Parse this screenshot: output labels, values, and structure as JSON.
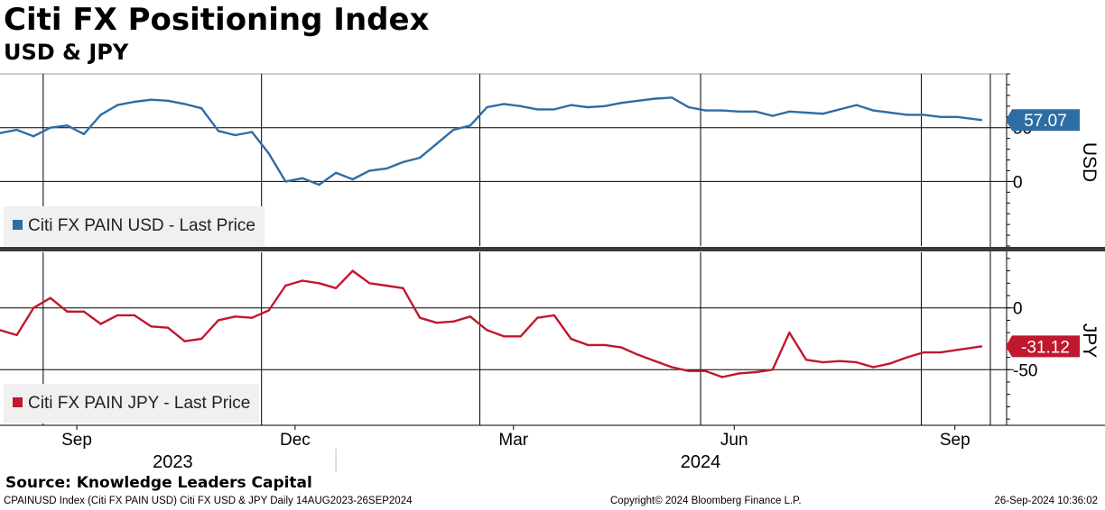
{
  "title": "Citi FX Positioning Index",
  "subtitle": "USD & JPY",
  "source": "Source: Knowledge Leaders Capital",
  "footer": {
    "left": "CPAINUSD Index (Citi FX PAIN USD) Citi FX USD & JPY  Daily 14AUG2023-26SEP2024",
    "center": "Copyright© 2024 Bloomberg Finance L.P.",
    "right": "26-Sep-2024 10:36:02"
  },
  "colors": {
    "usd": "#2e6da4",
    "jpy": "#c0182e",
    "grid": "#000000"
  },
  "chart_data": [
    {
      "type": "line",
      "panel": "USD",
      "axis_title": "USD",
      "legend": "Citi FX PAIN USD - Last Price",
      "last_value_label": "57.07",
      "ylim": [
        -60,
        100
      ],
      "yticks": [
        {
          "value": 50,
          "label": "50"
        },
        {
          "value": 0,
          "label": "0"
        }
      ],
      "grid": true,
      "series": [
        {
          "name": "Citi FX PAIN USD - Last Price",
          "x": [
            "2023-08-14",
            "2023-08-21",
            "2023-08-28",
            "2023-09-04",
            "2023-09-11",
            "2023-09-18",
            "2023-09-25",
            "2023-10-02",
            "2023-10-09",
            "2023-10-16",
            "2023-10-23",
            "2023-10-30",
            "2023-11-06",
            "2023-11-13",
            "2023-11-20",
            "2023-11-27",
            "2023-12-04",
            "2023-12-11",
            "2023-12-18",
            "2023-12-25",
            "2024-01-01",
            "2024-01-08",
            "2024-01-15",
            "2024-01-22",
            "2024-01-29",
            "2024-02-05",
            "2024-02-12",
            "2024-02-19",
            "2024-02-26",
            "2024-03-04",
            "2024-03-11",
            "2024-03-18",
            "2024-03-25",
            "2024-04-01",
            "2024-04-08",
            "2024-04-15",
            "2024-04-22",
            "2024-04-29",
            "2024-05-06",
            "2024-05-13",
            "2024-05-20",
            "2024-05-27",
            "2024-06-03",
            "2024-06-10",
            "2024-06-17",
            "2024-06-24",
            "2024-07-01",
            "2024-07-08",
            "2024-07-15",
            "2024-07-22",
            "2024-07-29",
            "2024-08-05",
            "2024-08-12",
            "2024-08-19",
            "2024-08-26",
            "2024-09-02",
            "2024-09-09",
            "2024-09-16",
            "2024-09-26"
          ],
          "values": [
            45,
            48,
            42,
            50,
            52,
            44,
            62,
            71,
            74,
            76,
            75,
            72,
            68,
            47,
            43,
            46,
            26,
            0,
            3,
            -3,
            8,
            2,
            10,
            12,
            18,
            22,
            35,
            48,
            52,
            69,
            72,
            70,
            67,
            67,
            71,
            69,
            70,
            73,
            75,
            77,
            78,
            69,
            66,
            66,
            65,
            65,
            61,
            65,
            64,
            63,
            67,
            71,
            66,
            64,
            62,
            62,
            60,
            60,
            57.07
          ]
        }
      ]
    },
    {
      "type": "line",
      "panel": "JPY",
      "axis_title": "JPY",
      "legend": "Citi FX PAIN JPY - Last Price",
      "last_value_label": "-31.12",
      "ylim": [
        -95,
        45
      ],
      "yticks": [
        {
          "value": 0,
          "label": "0"
        },
        {
          "value": -50,
          "label": "-50"
        }
      ],
      "grid": true,
      "series": [
        {
          "name": "Citi FX PAIN JPY - Last Price",
          "x": [
            "2023-08-14",
            "2023-08-21",
            "2023-08-28",
            "2023-09-04",
            "2023-09-11",
            "2023-09-18",
            "2023-09-25",
            "2023-10-02",
            "2023-10-09",
            "2023-10-16",
            "2023-10-23",
            "2023-10-30",
            "2023-11-06",
            "2023-11-13",
            "2023-11-20",
            "2023-11-27",
            "2023-12-04",
            "2023-12-11",
            "2023-12-18",
            "2023-12-25",
            "2024-01-01",
            "2024-01-08",
            "2024-01-15",
            "2024-01-22",
            "2024-01-29",
            "2024-02-05",
            "2024-02-12",
            "2024-02-19",
            "2024-02-26",
            "2024-03-04",
            "2024-03-11",
            "2024-03-18",
            "2024-03-25",
            "2024-04-01",
            "2024-04-08",
            "2024-04-15",
            "2024-04-22",
            "2024-04-29",
            "2024-05-06",
            "2024-05-13",
            "2024-05-20",
            "2024-05-27",
            "2024-06-03",
            "2024-06-10",
            "2024-06-17",
            "2024-06-24",
            "2024-07-01",
            "2024-07-08",
            "2024-07-15",
            "2024-07-22",
            "2024-07-29",
            "2024-08-05",
            "2024-08-12",
            "2024-08-19",
            "2024-08-26",
            "2024-09-02",
            "2024-09-09",
            "2024-09-16",
            "2024-09-26"
          ],
          "values": [
            -18,
            -22,
            0,
            8,
            -3,
            -3,
            -13,
            -6,
            -6,
            -15,
            -16,
            -27,
            -25,
            -10,
            -7,
            -8,
            -2,
            18,
            22,
            20,
            16,
            30,
            20,
            18,
            16,
            -8,
            -12,
            -11,
            -7,
            -18,
            -23,
            -23,
            -8,
            -6,
            -25,
            -30,
            -30,
            -32,
            -38,
            -43,
            -48,
            -51,
            -51,
            -56,
            -53,
            -52,
            -50,
            -20,
            -42,
            -44,
            -43,
            -44,
            -48,
            -45,
            -40,
            -36,
            -36,
            -34,
            -31.12
          ]
        }
      ]
    }
  ],
  "x_axis": {
    "months": [
      {
        "date": "2023-09-15",
        "label": "Sep"
      },
      {
        "date": "2023-12-15",
        "label": "Dec"
      },
      {
        "date": "2024-03-15",
        "label": "Mar"
      },
      {
        "date": "2024-06-15",
        "label": "Jun"
      },
      {
        "date": "2024-09-15",
        "label": "Sep"
      }
    ],
    "years": [
      {
        "label": "2023",
        "center": "2023-10-25"
      },
      {
        "label": "2024",
        "center": "2024-06-01"
      }
    ],
    "year_divider": "2024-01-01",
    "gridlines": [
      "2023-09-01",
      "2023-12-01",
      "2024-03-01",
      "2024-06-01",
      "2024-09-01"
    ]
  }
}
